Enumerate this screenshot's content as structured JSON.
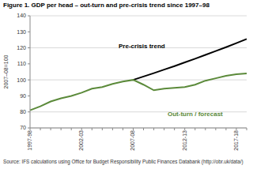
{
  "chart_data": {
    "type": "line",
    "title": "Figure 1. GDP per head – out-turn and pre-crisis trend since 1997–98",
    "y_label": "2007–08=100",
    "source": "Source: IFS calculations using Office for Budget Responsibility Public Finances Databank (http://obr.uk/data/)",
    "categories": [
      "1997-98",
      null,
      null,
      null,
      null,
      "2002-03",
      null,
      null,
      null,
      null,
      "2007-08",
      null,
      null,
      null,
      null,
      "2012-13",
      null,
      null,
      null,
      null,
      "2017-18",
      null
    ],
    "series": [
      {
        "name": "Pre-crisis trend",
        "color": "#000000",
        "values": [
          null,
          null,
          null,
          null,
          null,
          null,
          null,
          null,
          null,
          null,
          100,
          102.1,
          104.2,
          106.4,
          108.6,
          110.9,
          113.2,
          115.6,
          118.0,
          120.4,
          122.9,
          125.5
        ]
      },
      {
        "name": "Out-turn / forecast",
        "color": "#5b8a3a",
        "values": [
          81,
          83.5,
          86.5,
          88.5,
          90,
          92,
          94.5,
          95.5,
          97.5,
          99,
          100,
          97,
          93.5,
          94.5,
          95,
          95.5,
          97,
          99.5,
          101,
          102.5,
          103.5,
          104
        ]
      }
    ],
    "ylim": [
      70,
      140
    ],
    "yticks": [
      70,
      80,
      90,
      100,
      110,
      120,
      130,
      140
    ],
    "grid": true
  }
}
